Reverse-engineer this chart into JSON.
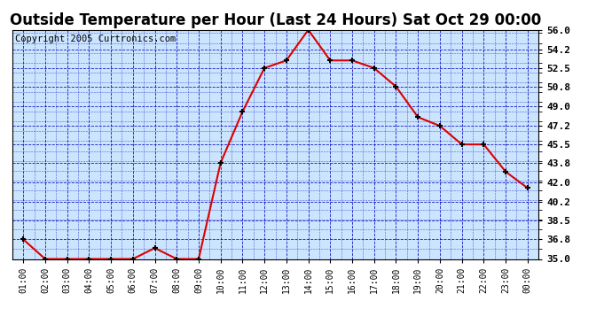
{
  "title": "Outside Temperature per Hour (Last 24 Hours) Sat Oct 29 00:00",
  "copyright": "Copyright 2005 Curtronics.com",
  "hours": [
    "01:00",
    "02:00",
    "03:00",
    "04:00",
    "05:00",
    "06:00",
    "07:00",
    "08:00",
    "09:00",
    "10:00",
    "11:00",
    "12:00",
    "13:00",
    "14:00",
    "15:00",
    "16:00",
    "17:00",
    "18:00",
    "19:00",
    "20:00",
    "21:00",
    "22:00",
    "23:00",
    "00:00"
  ],
  "temps": [
    36.8,
    35.0,
    35.0,
    35.0,
    35.0,
    35.0,
    36.0,
    35.0,
    35.0,
    43.8,
    48.5,
    52.5,
    53.2,
    56.0,
    53.2,
    53.2,
    52.5,
    50.8,
    48.0,
    47.2,
    45.5,
    45.5,
    43.0,
    41.5
  ],
  "line_color": "#dd0000",
  "marker_color": "#000000",
  "outer_bg": "#ffffff",
  "plot_bg": "#cce5ff",
  "grid_color": "#0000bb",
  "border_color": "#000000",
  "title_color": "#000000",
  "ylim_min": 35.0,
  "ylim_max": 56.0,
  "yticks": [
    35.0,
    36.8,
    38.5,
    40.2,
    42.0,
    43.8,
    45.5,
    47.2,
    49.0,
    50.8,
    52.5,
    54.2,
    56.0
  ],
  "title_fontsize": 12,
  "copyright_fontsize": 7.5
}
